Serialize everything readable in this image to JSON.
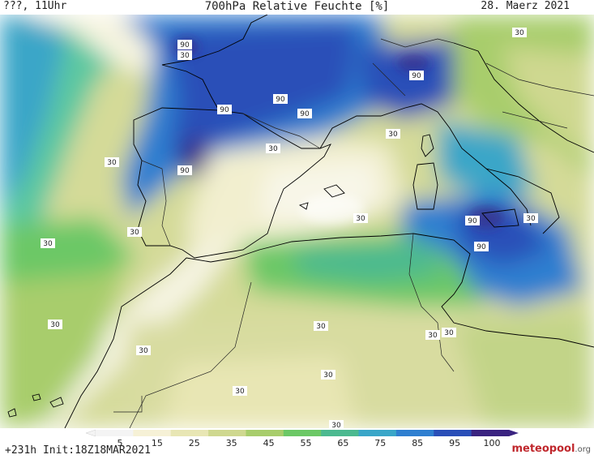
{
  "header": {
    "left": "???, 11Uhr",
    "title": "700hPa Relative Feuchte [%]",
    "date": "28. Maerz 2021"
  },
  "footer": {
    "init": "+231h Init:18Z18MAR2021",
    "brand": "meteopool",
    "brand_suffix": ".org"
  },
  "colorbar": {
    "ticks": [
      "5",
      "15",
      "25",
      "35",
      "45",
      "55",
      "65",
      "75",
      "85",
      "95",
      "100"
    ],
    "colors": [
      "#f4f4f4",
      "#f6f1d6",
      "#e8e6b4",
      "#cfd890",
      "#a8cd6c",
      "#6cc866",
      "#4cb990",
      "#3aa6c8",
      "#2f7fd0",
      "#2a4fb8",
      "#3a2380"
    ]
  },
  "contour_labels": {
    "values": [
      "90",
      "30",
      "90",
      "90",
      "90",
      "90",
      "90",
      "30",
      "30",
      "30",
      "30",
      "30",
      "30",
      "90",
      "90",
      "30",
      "30",
      "30",
      "30",
      "30",
      "30",
      "30",
      "30",
      "30",
      "30",
      "30"
    ]
  }
}
